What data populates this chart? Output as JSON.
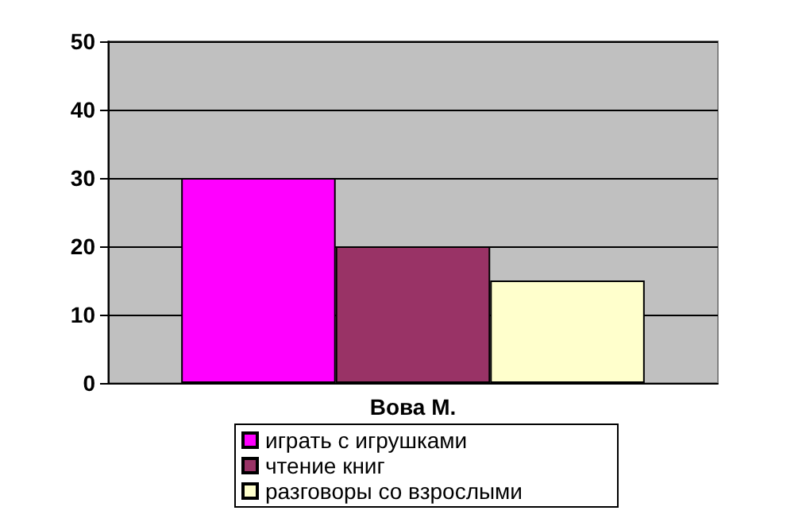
{
  "chart_data": {
    "type": "bar",
    "categories": [
      "Вова М."
    ],
    "series": [
      {
        "name": "играть с игрушками",
        "color": "#ff00ff",
        "values": [
          30
        ]
      },
      {
        "name": "чтение книг",
        "color": "#993366",
        "values": [
          20
        ]
      },
      {
        "name": "разговоры со взрослыми",
        "color": "#ffffcc",
        "values": [
          15
        ]
      }
    ],
    "ylim": [
      0,
      50
    ],
    "yticks": [
      0,
      10,
      20,
      30,
      40,
      50
    ],
    "grid": "y",
    "legend": "bottom"
  }
}
